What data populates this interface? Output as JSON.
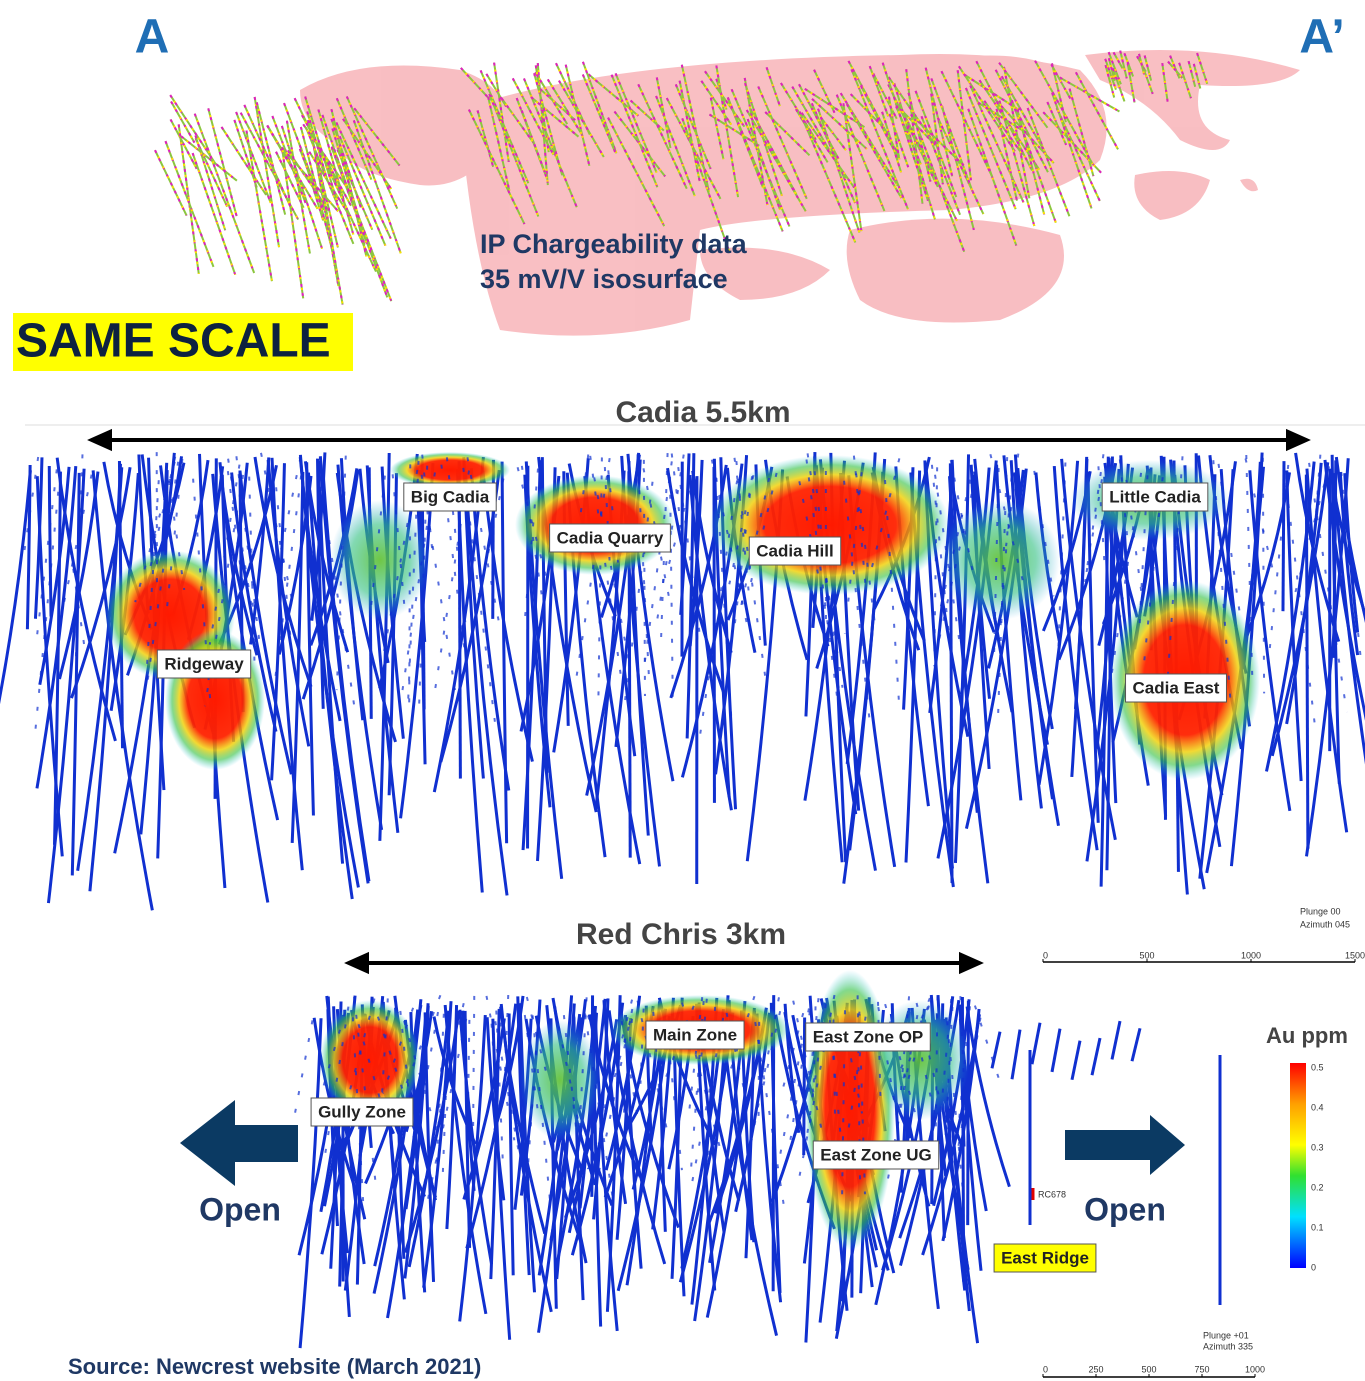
{
  "top_section": {
    "label_left": "A",
    "label_right": "A’",
    "annotation": [
      "IP Chargeability data",
      "35 mV/V isosurface"
    ]
  },
  "same_scale": "SAME SCALE",
  "cadia": {
    "title": "Cadia 5.5km",
    "labels": [
      "Big Cadia",
      "Cadia Quarry",
      "Cadia Hill",
      "Little Cadia",
      "Ridgeway",
      "Cadia East"
    ],
    "view": [
      "Plunge 00",
      "Azimuth 045"
    ],
    "scale_ticks": [
      0,
      500,
      1000,
      1500
    ]
  },
  "red_chris": {
    "title": "Red Chris 3km",
    "labels": [
      "Main Zone",
      "East Zone OP",
      "Gully Zone",
      "East Zone UG"
    ],
    "highlight_label": "East Ridge",
    "hole_label": "RC678",
    "open_left": "Open",
    "open_right": "Open",
    "view": [
      "Plunge +01",
      "Azimuth 335"
    ],
    "scale_ticks": [
      0,
      250,
      500,
      750,
      1000
    ]
  },
  "legend": {
    "title": "Au ppm",
    "ticks": [
      0.5,
      0.4,
      0.3,
      0.2,
      0.1,
      0
    ]
  },
  "source": "Source: Newcrest website (March 2021)"
}
